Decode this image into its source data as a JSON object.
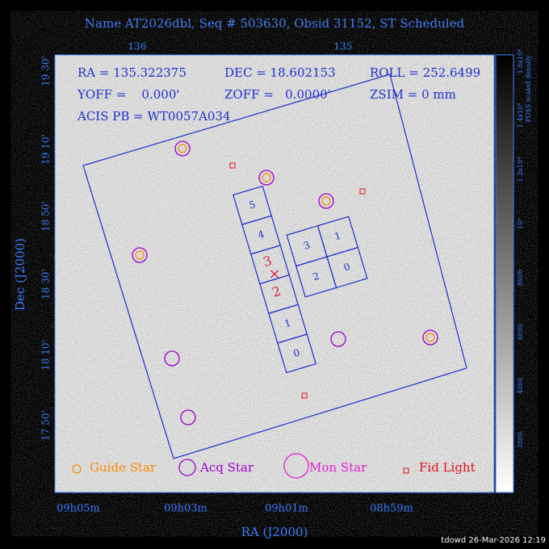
{
  "header": {
    "title": "Name AT2026dbl, Seq # 503630, Obsid 31152, ST Scheduled"
  },
  "info": {
    "ra": "RA = 135.322375",
    "dec": "DEC = 18.602153",
    "roll": "ROLL = 252.6499",
    "yoff": "YOFF =    0.000'",
    "zoff": "ZOFF =   0.0000'",
    "zsim": "ZSIM = 0 mm",
    "acis": "ACIS PB = WT0057A034"
  },
  "axes": {
    "top_ticks": [
      "136",
      "135"
    ],
    "left_ticks": [
      "19 30'",
      "19 10'",
      "18 50'",
      "18 30'",
      "18 10'",
      "17 50'"
    ],
    "bottom_ticks": [
      "09h05m",
      "09h03m",
      "09h01m",
      "08h59m"
    ],
    "x_title": "RA (J2000)",
    "y_title": "Dec (J2000)"
  },
  "colorbar": {
    "ticks": [
      "2000",
      "4000",
      "6000",
      "8000",
      "10⁴",
      "1.2x10⁴",
      "1.4x10⁴",
      "1.6x10⁴"
    ],
    "title": "POSS scaled density"
  },
  "acis_s": [
    "5",
    "4",
    "3",
    "2",
    "1",
    "0"
  ],
  "acis_i": [
    "3",
    "1",
    "2",
    "0"
  ],
  "legend": [
    "Guide Star",
    "Acq Star",
    "Mon Star",
    "Fid Light"
  ],
  "footer": "tdowd 26-Mar-2026 12:19"
}
